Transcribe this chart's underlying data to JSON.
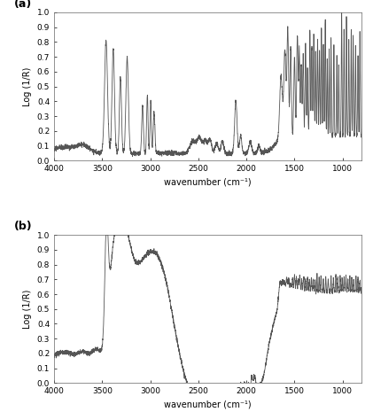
{
  "title_a": "(a)",
  "title_b": "(b)",
  "xlabel": "wavenumber (cm⁻¹)",
  "ylabel": "Log (1/R)",
  "xlim": [
    4000,
    800
  ],
  "ylim": [
    0,
    1
  ],
  "yticks": [
    0,
    0.1,
    0.2,
    0.3,
    0.4,
    0.5,
    0.6,
    0.7,
    0.8,
    0.9,
    1
  ],
  "xticks": [
    4000,
    3500,
    3000,
    2500,
    2000,
    1500,
    1000
  ],
  "line_color": "#555555",
  "line_width": 0.6,
  "figsize": [
    4.21,
    4.65
  ],
  "dpi": 100,
  "background": "#ffffff",
  "font_size_label": 7,
  "font_size_tick": 6.5,
  "font_size_panel": 9
}
